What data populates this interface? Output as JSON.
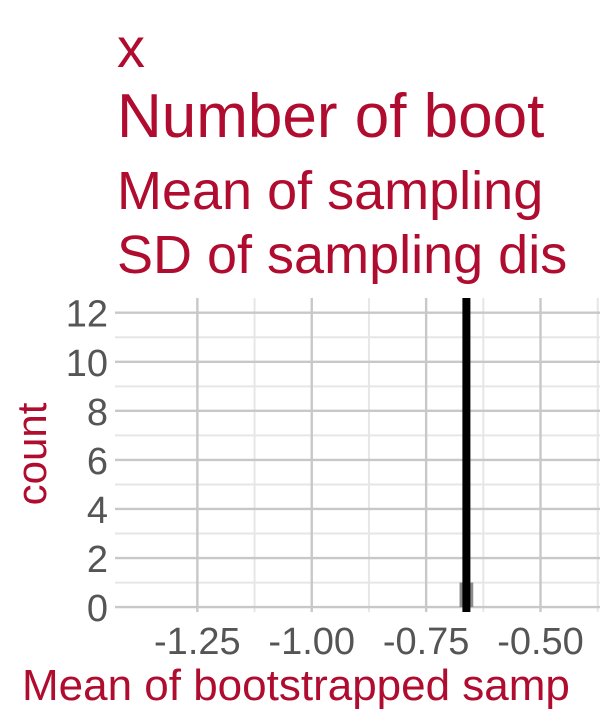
{
  "title_lines": [
    "x",
    "Number of boot",
    "Mean of sampling",
    "SD of sampling dis"
  ],
  "colors": {
    "title": "#B00C2F",
    "axis_title": "#B00C2F",
    "tick_label": "#555555",
    "grid_major": "#C8C8C8",
    "grid_minor": "#E6E6E6",
    "bar": "#7F7F7F",
    "mean_line": "#000000"
  },
  "chart_data": {
    "type": "bar",
    "subtype": "histogram",
    "xlabel": "Mean of bootstrapped samp",
    "ylabel": "count",
    "xlim": [
      -1.43,
      -0.37
    ],
    "ylim": [
      -0.2,
      12.6
    ],
    "x_ticks": [
      -1.25,
      -1.0,
      -0.75,
      -0.5
    ],
    "x_tick_labels": [
      "-1.25",
      "-1.00",
      "-0.75",
      "-0.50"
    ],
    "y_ticks": [
      0,
      2,
      4,
      6,
      8,
      10,
      12
    ],
    "y_tick_labels": [
      "0",
      "2",
      "4",
      "6",
      "8",
      "10",
      "12"
    ],
    "grid": true,
    "bins": [
      {
        "x_start": -0.677,
        "x_end": -0.647,
        "count": 1
      }
    ],
    "vline": {
      "x": -0.662,
      "label": ""
    }
  }
}
